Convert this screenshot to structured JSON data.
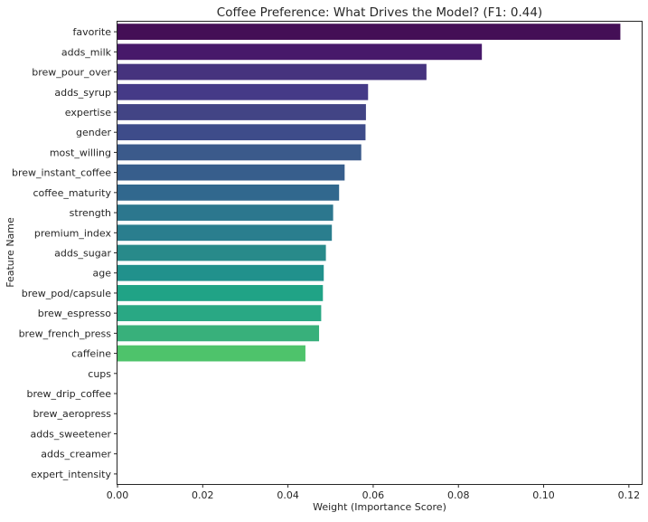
{
  "chart_data": {
    "type": "bar",
    "orientation": "horizontal",
    "title": "Coffee Preference: What Drives the Model? (F1: 0.44)",
    "xlabel": "Weight (Importance Score)",
    "ylabel": "Feature Name",
    "xlim": [
      0.0,
      0.123
    ],
    "xticks": [
      "0.00",
      "0.02",
      "0.04",
      "0.06",
      "0.08",
      "0.10",
      "0.12"
    ],
    "xtick_values": [
      0.0,
      0.02,
      0.04,
      0.06,
      0.08,
      0.1,
      0.12
    ],
    "grid": false,
    "legend": "none",
    "categories": [
      "favorite",
      "adds_milk",
      "brew_pour_over",
      "adds_syrup",
      "expertise",
      "gender",
      "most_willing",
      "brew_instant_coffee",
      "coffee_maturity",
      "strength",
      "premium_index",
      "adds_sugar",
      "age",
      "brew_pod/capsule",
      "brew_espresso",
      "brew_french_press",
      "caffeine",
      "cups",
      "brew_drip_coffee",
      "brew_aeropress",
      "adds_sweetener",
      "adds_creamer",
      "expert_intensity"
    ],
    "values": [
      0.118,
      0.0855,
      0.0725,
      0.0588,
      0.0583,
      0.0582,
      0.0572,
      0.0533,
      0.052,
      0.0506,
      0.0503,
      0.0489,
      0.0484,
      0.0482,
      0.0478,
      0.0473,
      0.0441,
      0.0,
      0.0,
      0.0,
      0.0,
      0.0,
      0.0
    ],
    "colors": [
      "#440f56",
      "#47196a",
      "#46337e",
      "#453a87",
      "#424485",
      "#3e4c8a",
      "#3b5a8b",
      "#375e8c",
      "#31688e",
      "#2c778e",
      "#2a7e8e",
      "#288a8a",
      "#21918c",
      "#20a386",
      "#29a884",
      "#38b07b",
      "#4ec36b",
      "#6ece58",
      "#8fd744",
      "#b4de2c",
      "#d6e421",
      "#f0e51f",
      "#fde725"
    ]
  }
}
